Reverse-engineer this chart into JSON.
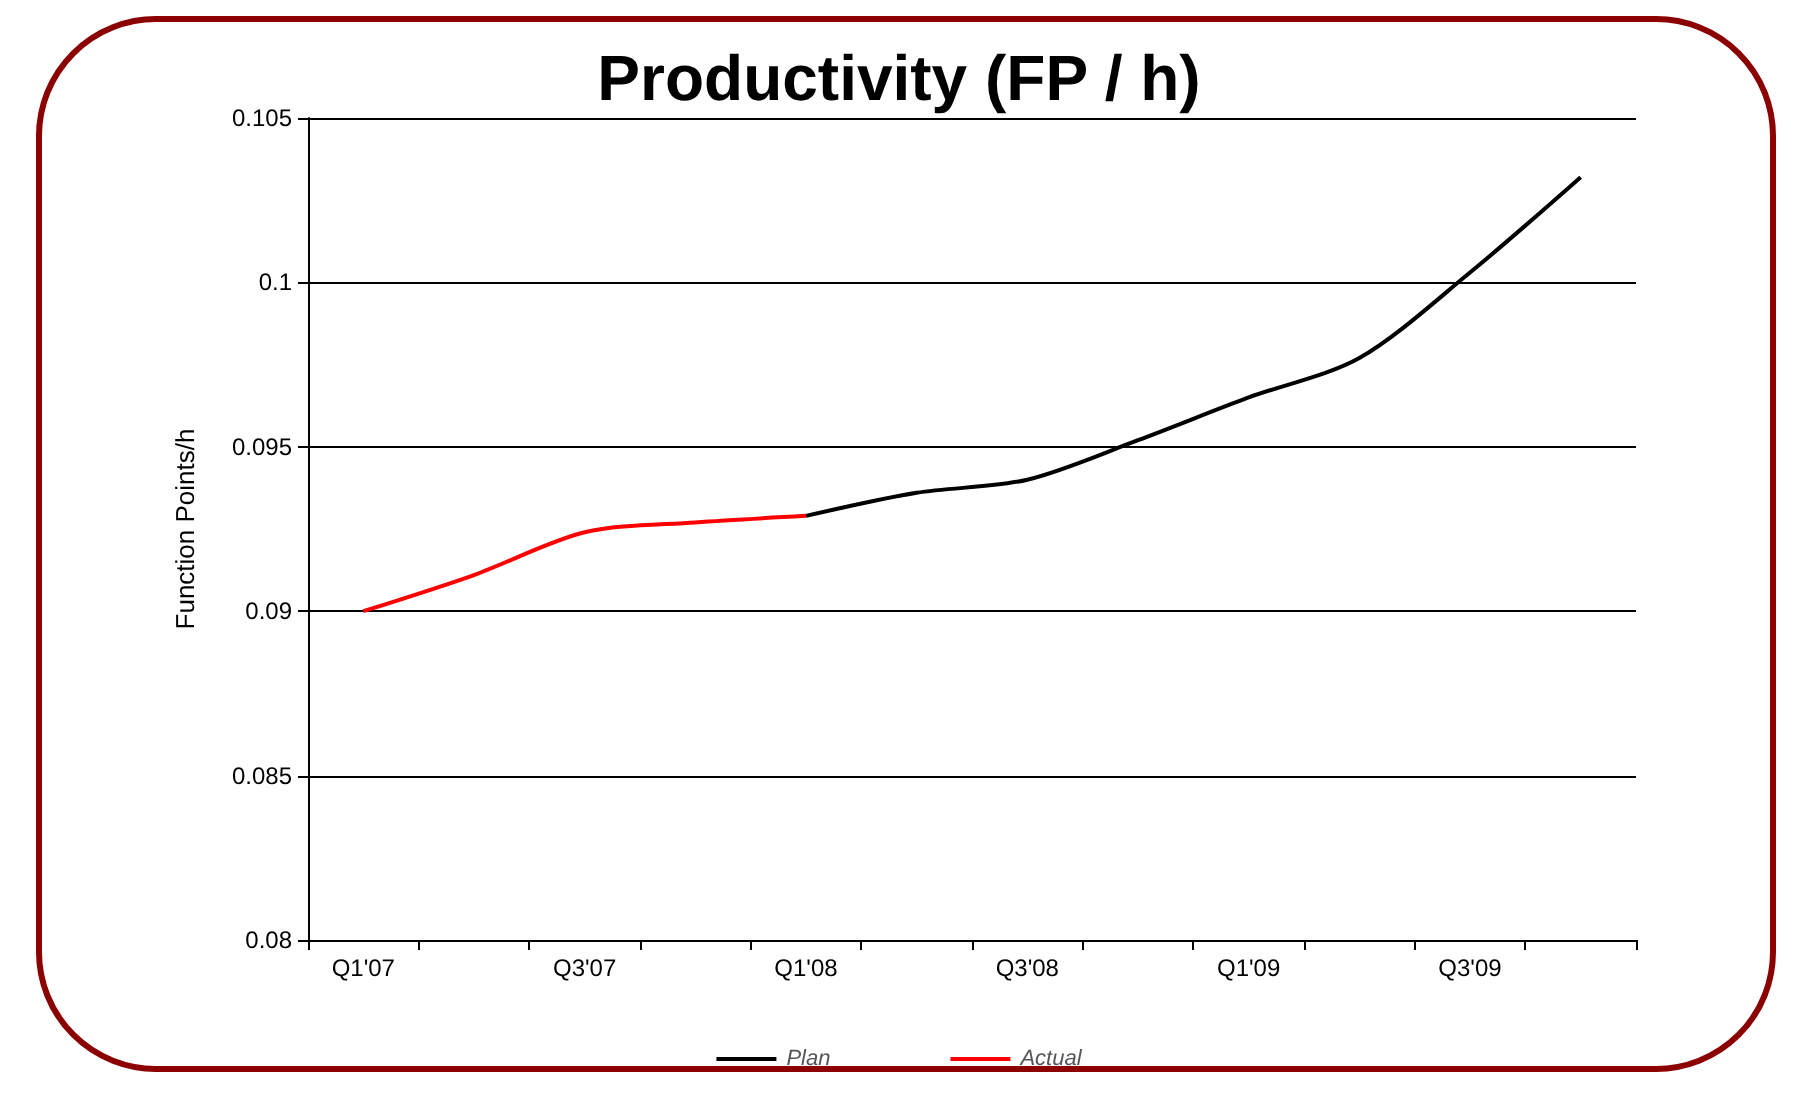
{
  "chart_data": {
    "type": "line",
    "title": "Productivity (FP / h)",
    "ylabel": "Function Points/h",
    "categories": [
      "Q1'07",
      null,
      "Q3'07",
      null,
      "Q1'08",
      null,
      "Q3'08",
      null,
      "Q1'09",
      null,
      "Q3'09",
      null
    ],
    "series": [
      {
        "name": "Plan",
        "color": "#000000",
        "values": [
          null,
          null,
          null,
          null,
          0.0929,
          0.0936,
          0.094,
          0.0952,
          0.0965,
          0.0977,
          0.1003,
          0.1032
        ]
      },
      {
        "name": "Actual",
        "color": "#ff0000",
        "values": [
          0.09,
          0.0911,
          0.0924,
          0.0927,
          0.0929,
          null,
          null,
          null,
          null,
          null,
          null,
          null
        ]
      }
    ],
    "ylim": [
      0.08,
      0.105
    ],
    "yticks": [
      0.08,
      0.085,
      0.09,
      0.095,
      0.1,
      0.105
    ],
    "grid": "y",
    "legend": "bottom",
    "marker": "none",
    "line_style": "solid"
  }
}
